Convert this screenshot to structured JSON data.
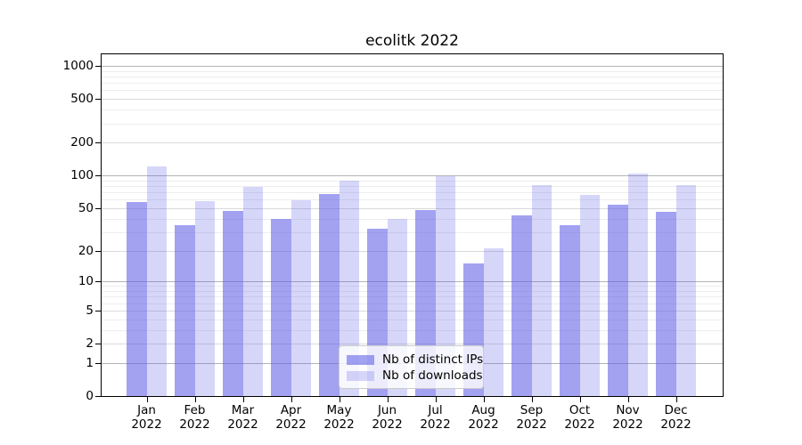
{
  "title": "ecolitk 2022",
  "legend": {
    "items": [
      {
        "label": "Nb of distinct IPs",
        "series_key": "ips"
      },
      {
        "label": "Nb of downloads",
        "series_key": "downloads"
      }
    ],
    "position": "lower center"
  },
  "colors": {
    "ips_effective_hex": "#a2a2f1",
    "downloads_effective_hex": "#d8d8f8",
    "ips_rgba": "rgba(90,90,230,0.56)",
    "downloads_rgba": "rgba(90,90,230,0.25)",
    "grid_major": "#b3b3b3",
    "grid_mid": "#dadada",
    "grid_minor": "#ededed",
    "frame": "#000000"
  },
  "chart_data": {
    "type": "bar",
    "title": "ecolitk 2022",
    "categories": [
      "Jan 2022",
      "Feb 2022",
      "Mar 2022",
      "Apr 2022",
      "May 2022",
      "Jun 2022",
      "Jul 2022",
      "Aug 2022",
      "Sep 2022",
      "Oct 2022",
      "Nov 2022",
      "Dec 2022"
    ],
    "series": [
      {
        "name": "Nb of distinct IPs",
        "values": [
          57,
          35,
          47,
          40,
          68,
          32,
          48,
          15,
          43,
          35,
          54,
          46
        ]
      },
      {
        "name": "Nb of downloads",
        "values": [
          120,
          58,
          78,
          59,
          90,
          40,
          98,
          21,
          82,
          66,
          104,
          82
        ]
      }
    ],
    "xlabel": "",
    "ylabel": "",
    "y_scale": "log1p",
    "y_ticks": [
      0,
      1,
      2,
      5,
      10,
      20,
      50,
      100,
      200,
      500,
      1000
    ],
    "y_tick_labels": [
      "0",
      "1",
      "2",
      "5",
      "10",
      "20",
      "50",
      "100",
      "200",
      "500",
      "1000"
    ],
    "ylim": [
      0,
      1200
    ],
    "grid": true,
    "legend_position": "lower center"
  }
}
